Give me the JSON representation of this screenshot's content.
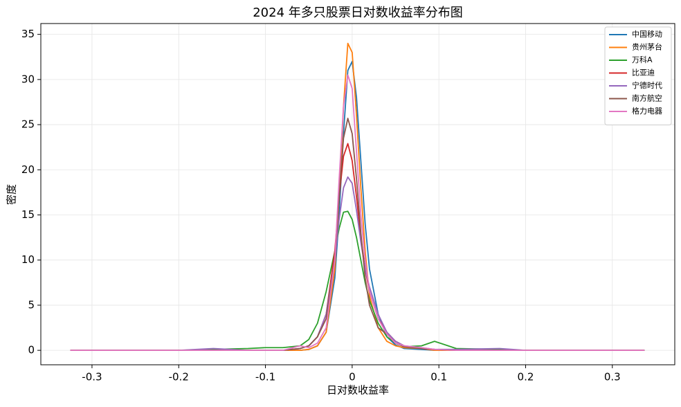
{
  "chart_data": {
    "type": "line",
    "title": "2024 年多只股票日对数收益率分布图",
    "xlabel": "日对数收益率",
    "ylabel": "密度",
    "x": [
      -0.325,
      -0.2,
      -0.16,
      -0.12,
      -0.1,
      -0.08,
      -0.06,
      -0.05,
      -0.04,
      -0.03,
      -0.02,
      -0.015,
      -0.01,
      -0.005,
      0,
      0.005,
      0.01,
      0.015,
      0.02,
      0.03,
      0.04,
      0.05,
      0.06,
      0.08,
      0.095,
      0.12,
      0.17,
      0.2,
      0.337
    ],
    "series": [
      {
        "name": "中国移动",
        "color": "#1f77b4",
        "values": [
          0,
          0,
          0,
          0,
          0,
          0,
          0,
          0.1,
          0.5,
          2,
          8,
          15,
          24,
          31,
          32,
          28,
          21,
          14,
          9,
          4,
          1.5,
          0.6,
          0.2,
          0.1,
          0,
          0,
          0,
          0,
          0
        ]
      },
      {
        "name": "贵州茅台",
        "color": "#ff7f0e",
        "values": [
          0,
          0,
          0,
          0,
          0,
          0,
          0,
          0.1,
          0.5,
          2,
          9,
          17,
          27,
          34,
          33,
          26,
          18,
          11,
          6,
          2.5,
          1,
          0.5,
          0.3,
          0.2,
          0,
          0,
          0,
          0,
          0
        ]
      },
      {
        "name": "万科A",
        "color": "#2ca02c",
        "values": [
          0,
          0,
          0.1,
          0.2,
          0.3,
          0.3,
          0.5,
          1.2,
          3,
          6.5,
          11,
          13.5,
          15.3,
          15.4,
          14.5,
          12.5,
          10,
          7.5,
          5.5,
          3,
          1.5,
          0.8,
          0.4,
          0.5,
          1.0,
          0.2,
          0.1,
          0,
          0
        ]
      },
      {
        "name": "比亚迪",
        "color": "#d62728",
        "values": [
          0,
          0,
          0,
          0,
          0,
          0,
          0.2,
          0.5,
          1.5,
          4,
          11,
          17,
          21.5,
          22.9,
          21,
          17,
          12.5,
          9,
          6.5,
          3.5,
          2,
          1,
          0.5,
          0.2,
          0.1,
          0,
          0,
          0,
          0
        ]
      },
      {
        "name": "宁德时代",
        "color": "#9467bd",
        "values": [
          0,
          0,
          0.2,
          0,
          0,
          0,
          0.2,
          0.5,
          1.5,
          4,
          10,
          14.5,
          18,
          19.2,
          18.5,
          15.5,
          12,
          9,
          7,
          4,
          2,
          1,
          0.5,
          0.3,
          0.1,
          0.1,
          0.2,
          0,
          0
        ]
      },
      {
        "name": "南方航空",
        "color": "#8c564b",
        "values": [
          0,
          0,
          0,
          0,
          0,
          0,
          0.2,
          0.5,
          1.5,
          3.5,
          10,
          17,
          23.5,
          25.7,
          24,
          19,
          13,
          8,
          5,
          2.5,
          1.8,
          0.8,
          0.4,
          0.2,
          0.1,
          0,
          0,
          0,
          0
        ]
      },
      {
        "name": "格力电器",
        "color": "#e377c2",
        "values": [
          0,
          0,
          0,
          0,
          0,
          0,
          0.5,
          0.3,
          0.8,
          2.5,
          10,
          19,
          27,
          30.5,
          29,
          22,
          15,
          10,
          6.5,
          3.5,
          1.8,
          0.8,
          0.5,
          0.3,
          0.1,
          0,
          0,
          0,
          0
        ]
      }
    ],
    "xlim": [
      -0.359,
      0.372
    ],
    "xticks": [
      -0.3,
      -0.2,
      -0.1,
      0,
      0.1,
      0.2,
      0.3
    ],
    "ylim": [
      -1.6,
      36.2
    ],
    "yticks": [
      0,
      5,
      10,
      15,
      20,
      25,
      30,
      35
    ],
    "grid": true,
    "legend": "upper right"
  }
}
